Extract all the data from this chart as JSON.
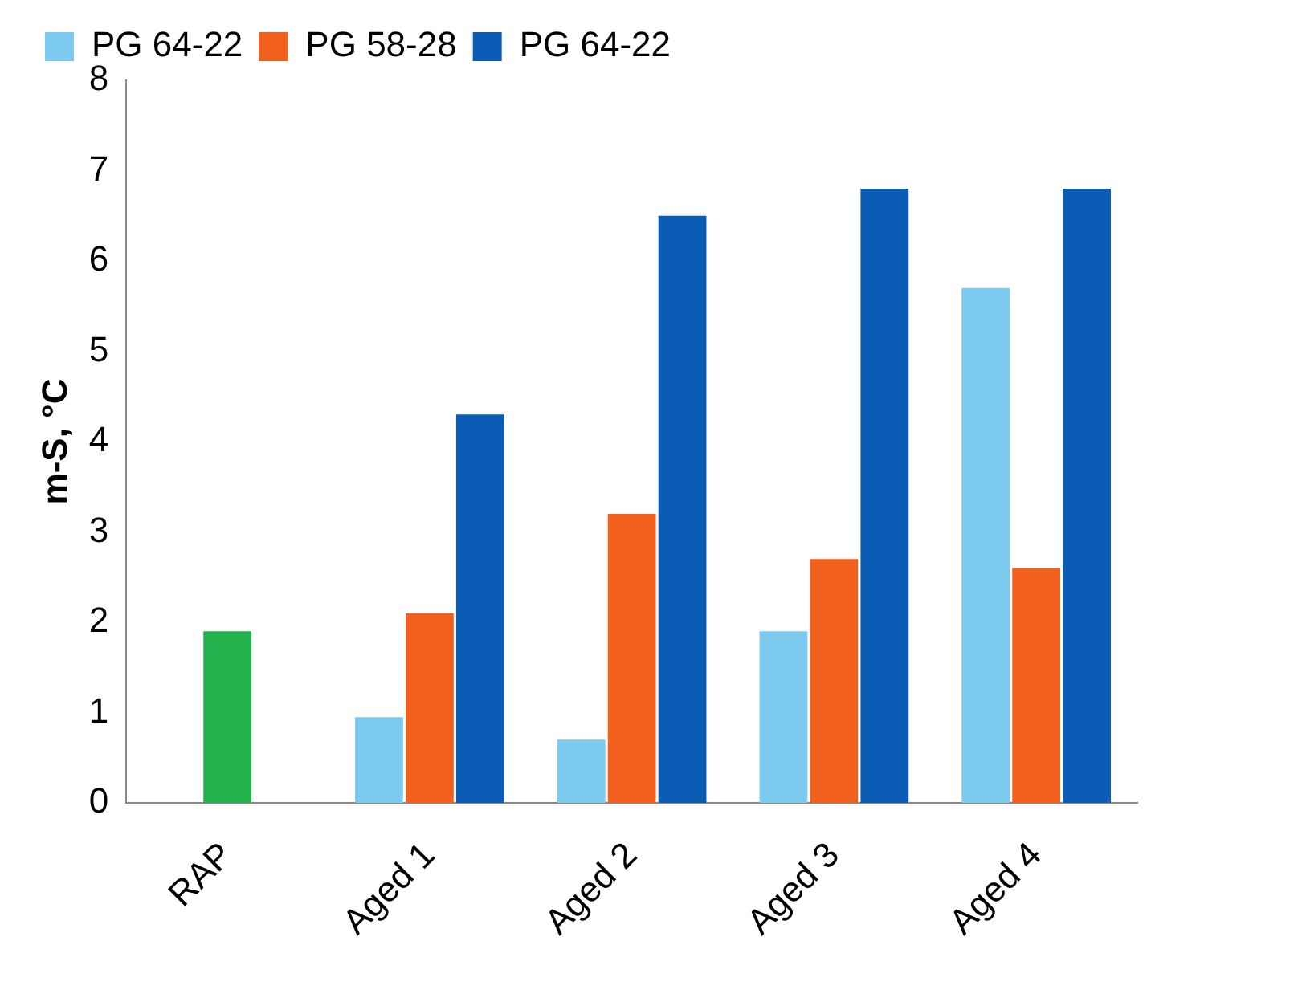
{
  "chart_data": {
    "type": "bar",
    "ylabel": "m-S, °C",
    "categories": [
      "RAP",
      "Aged 1",
      "Aged 2",
      "Aged 3",
      "Aged 4"
    ],
    "series": [
      {
        "name": "PG 64-22",
        "color": "#7ccbee",
        "values": [
          null,
          0.95,
          0.7,
          1.9,
          5.7
        ]
      },
      {
        "name": "PG 58-28",
        "color": "#f2601e",
        "colors": [
          "#22b14c",
          "#f2601e",
          "#f2601e",
          "#f2601e",
          "#f2601e"
        ],
        "values": [
          1.9,
          2.1,
          3.2,
          2.7,
          2.6
        ]
      },
      {
        "name": "PG 64-22",
        "color": "#0b5cb5",
        "values": [
          null,
          4.3,
          6.5,
          6.8,
          6.8
        ]
      }
    ],
    "ylim": [
      0,
      8
    ],
    "yticks": [
      0,
      1,
      2,
      3,
      4,
      5,
      6,
      7,
      8
    ],
    "grid": false,
    "legend": "top"
  }
}
